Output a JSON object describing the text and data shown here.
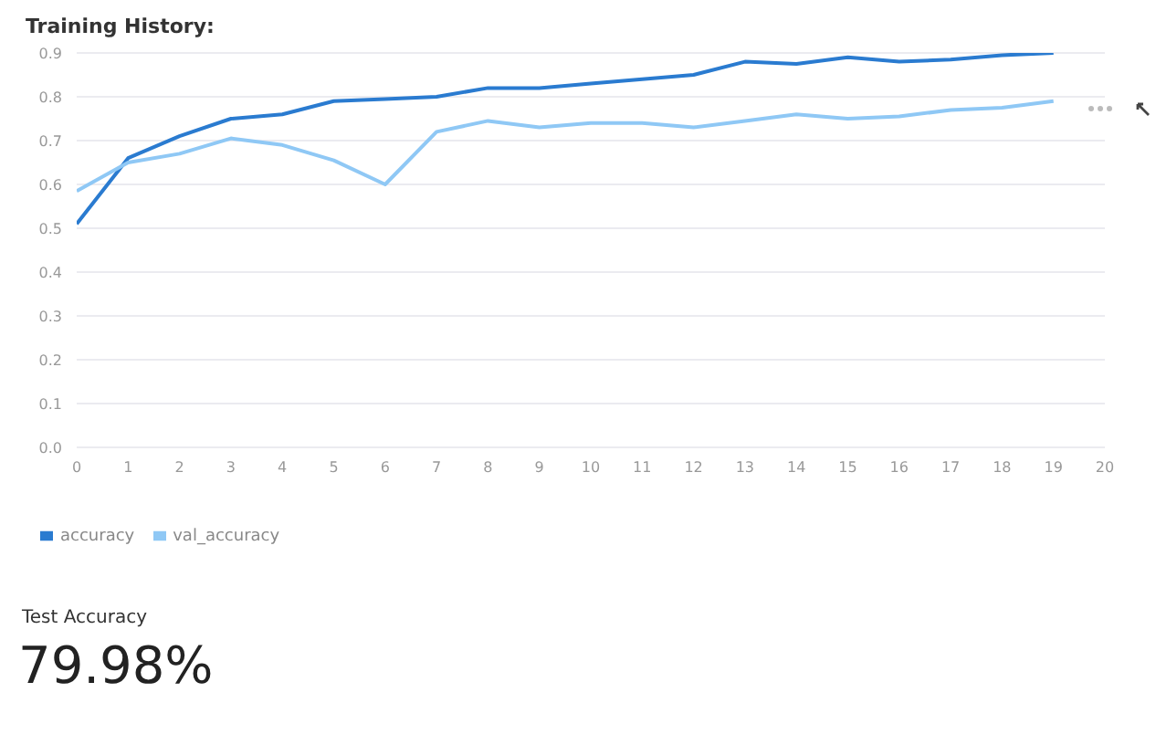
{
  "chart_data": {
    "type": "line",
    "title": "Training History:",
    "x": [
      0,
      1,
      2,
      3,
      4,
      5,
      6,
      7,
      8,
      9,
      10,
      11,
      12,
      13,
      14,
      15,
      16,
      17,
      18,
      19
    ],
    "series": [
      {
        "name": "accuracy",
        "color": "#2a7bd0",
        "values": [
          0.51,
          0.66,
          0.71,
          0.75,
          0.76,
          0.79,
          0.795,
          0.8,
          0.82,
          0.82,
          0.83,
          0.84,
          0.85,
          0.88,
          0.875,
          0.89,
          0.88,
          0.885,
          0.895,
          0.9
        ]
      },
      {
        "name": "val_accuracy",
        "color": "#8fc8f5",
        "values": [
          0.585,
          0.65,
          0.67,
          0.705,
          0.69,
          0.655,
          0.6,
          0.72,
          0.745,
          0.73,
          0.74,
          0.74,
          0.73,
          0.745,
          0.76,
          0.75,
          0.755,
          0.77,
          0.775,
          0.79
        ]
      }
    ],
    "xlim": [
      0,
      20
    ],
    "xticks": [
      0,
      1,
      2,
      3,
      4,
      5,
      6,
      7,
      8,
      9,
      10,
      11,
      12,
      13,
      14,
      15,
      16,
      17,
      18,
      19,
      20
    ],
    "ylim": [
      0,
      0.9
    ],
    "yticks": [
      {
        "value": 0,
        "label": "0.0"
      },
      {
        "value": 0.1,
        "label": "0.1"
      },
      {
        "value": 0.2,
        "label": "0.2"
      },
      {
        "value": 0.3,
        "label": "0.3"
      },
      {
        "value": 0.4,
        "label": "0.4"
      },
      {
        "value": 0.5,
        "label": "0.5"
      },
      {
        "value": 0.6,
        "label": "0.6"
      },
      {
        "value": 0.7,
        "label": "0.7"
      },
      {
        "value": 0.8,
        "label": "0.8"
      },
      {
        "value": 0.9,
        "label": "0.9"
      }
    ],
    "grid": "y",
    "legend": "bottom left",
    "marker": "none",
    "line_style": "solid",
    "annotations": [
      "Test Accuracy",
      "79.98%"
    ]
  }
}
